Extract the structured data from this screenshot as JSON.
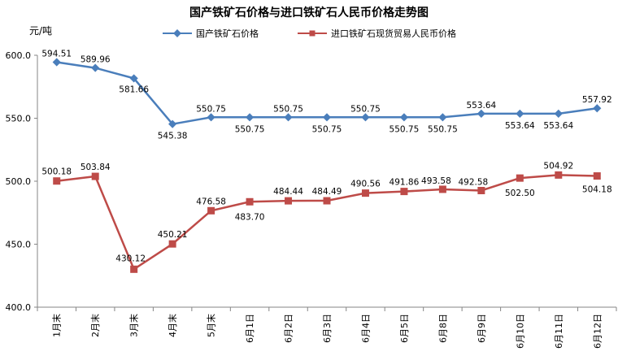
{
  "chart_data": {
    "type": "line",
    "title": "国产铁矿石价格与进口铁矿石人民币价格走势图",
    "unit_label": "元/吨",
    "categories": [
      "1月末",
      "2月末",
      "3月末",
      "4月末",
      "5月末",
      "6月1日",
      "6月2日",
      "6月3日",
      "6月4日",
      "6月5日",
      "6月8日",
      "6月9日",
      "6月10日",
      "6月11日",
      "6月12日"
    ],
    "ylim": [
      400,
      600
    ],
    "yticks": [
      "400.0",
      "450.0",
      "500.0",
      "550.0",
      "600.0"
    ],
    "grid": false,
    "legend_position": "top",
    "series": [
      {
        "name": "国产铁矿石价格",
        "color": "#4a7ebb",
        "marker": "diamond",
        "values": [
          594.51,
          589.96,
          581.66,
          545.38,
          550.75,
          550.75,
          550.75,
          550.75,
          550.75,
          550.75,
          550.75,
          553.64,
          553.64,
          553.64,
          557.92
        ],
        "labels": [
          "594.51",
          "589.96",
          "581.66",
          "545.38",
          "550.75",
          "550.75",
          "550.75",
          "550.75",
          "550.75",
          "550.75",
          "550.75",
          "553.64",
          "553.64",
          "553.64",
          "557.92"
        ]
      },
      {
        "name": "进口铁矿石现货贸易人民币价格",
        "color": "#be4b48",
        "marker": "square",
        "values": [
          500.18,
          503.84,
          430.12,
          450.21,
          476.58,
          483.7,
          484.44,
          484.49,
          490.56,
          491.86,
          493.58,
          492.58,
          502.5,
          504.92,
          504.18
        ],
        "labels": [
          "500.18",
          "503.84",
          "430.12",
          "450.21",
          "476.58",
          "483.70",
          "484.44",
          "484.49",
          "490.56",
          "491.86",
          "493.58",
          "492.58",
          "502.50",
          "504.92",
          "504.18"
        ]
      }
    ]
  }
}
